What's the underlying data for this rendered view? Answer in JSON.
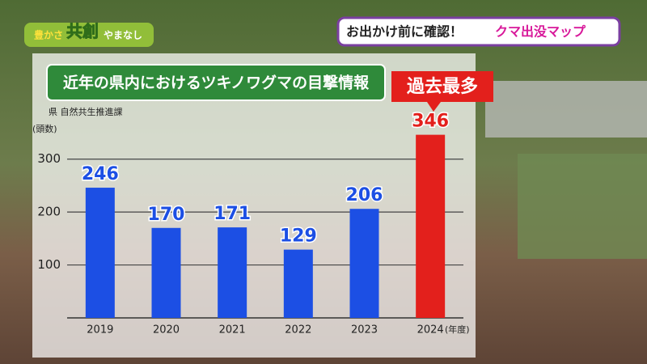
{
  "logo": [
    "豊かさ",
    "共創",
    "やまなし"
  ],
  "banner": {
    "text": "お出かけ前に確認！",
    "highlight": "クマ出没マップ"
  },
  "chart_data": {
    "type": "bar",
    "title": "近年の県内におけるツキノワグマの目撃情報",
    "source": "県 自然共生推進課",
    "y_label": "(頭数)",
    "x_label": "(年度)",
    "annotation": "過去最多",
    "categories": [
      "2019",
      "2020",
      "2021",
      "2022",
      "2023",
      "2024"
    ],
    "values": [
      246,
      170,
      171,
      129,
      206,
      346
    ],
    "colors": [
      "#1c4fe4",
      "#1c4fe4",
      "#1c4fe4",
      "#1c4fe4",
      "#1c4fe4",
      "#e3201c"
    ],
    "ylim": [
      0,
      350
    ],
    "yticks": [
      100,
      200,
      300
    ],
    "grid": true
  }
}
